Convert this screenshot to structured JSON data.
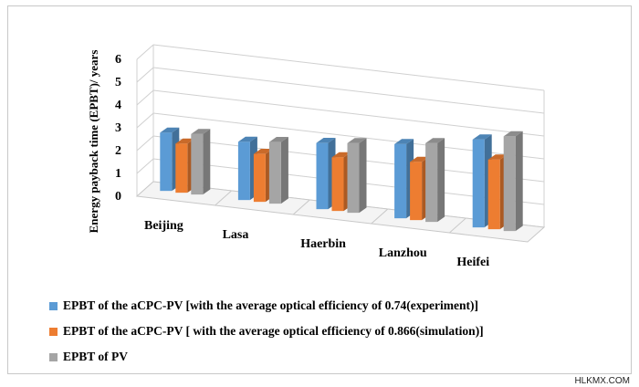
{
  "chart_data": {
    "type": "bar",
    "title": "",
    "xlabel": "",
    "ylabel": "Energy payback time (EPBT)/ years",
    "ylim": [
      0,
      6
    ],
    "yticks": [
      "0",
      "1",
      "2",
      "3",
      "4",
      "5",
      "6"
    ],
    "grid": true,
    "legend_position": "bottom",
    "categories": [
      "Beijing",
      "Lasa",
      "Haerbin",
      "Lanzhou",
      "Heifei"
    ],
    "series": [
      {
        "name": "EPBT of the aCPC-PV [with the average optical efficiency of 0.74(experiment)]",
        "color": "#5b9bd5",
        "values": [
          2.55,
          2.55,
          2.9,
          3.25,
          3.85
        ]
      },
      {
        "name": "EPBT of the aCPC-PV [ with the average optical efficiency of 0.866(simulation)]",
        "color": "#ed7d31",
        "values": [
          2.15,
          2.1,
          2.35,
          2.55,
          3.05
        ]
      },
      {
        "name": "EPBT of  PV",
        "color": "#a5a5a5",
        "values": [
          2.65,
          2.7,
          3.05,
          3.45,
          4.15
        ]
      }
    ]
  },
  "watermark": "HLKMX.COM"
}
